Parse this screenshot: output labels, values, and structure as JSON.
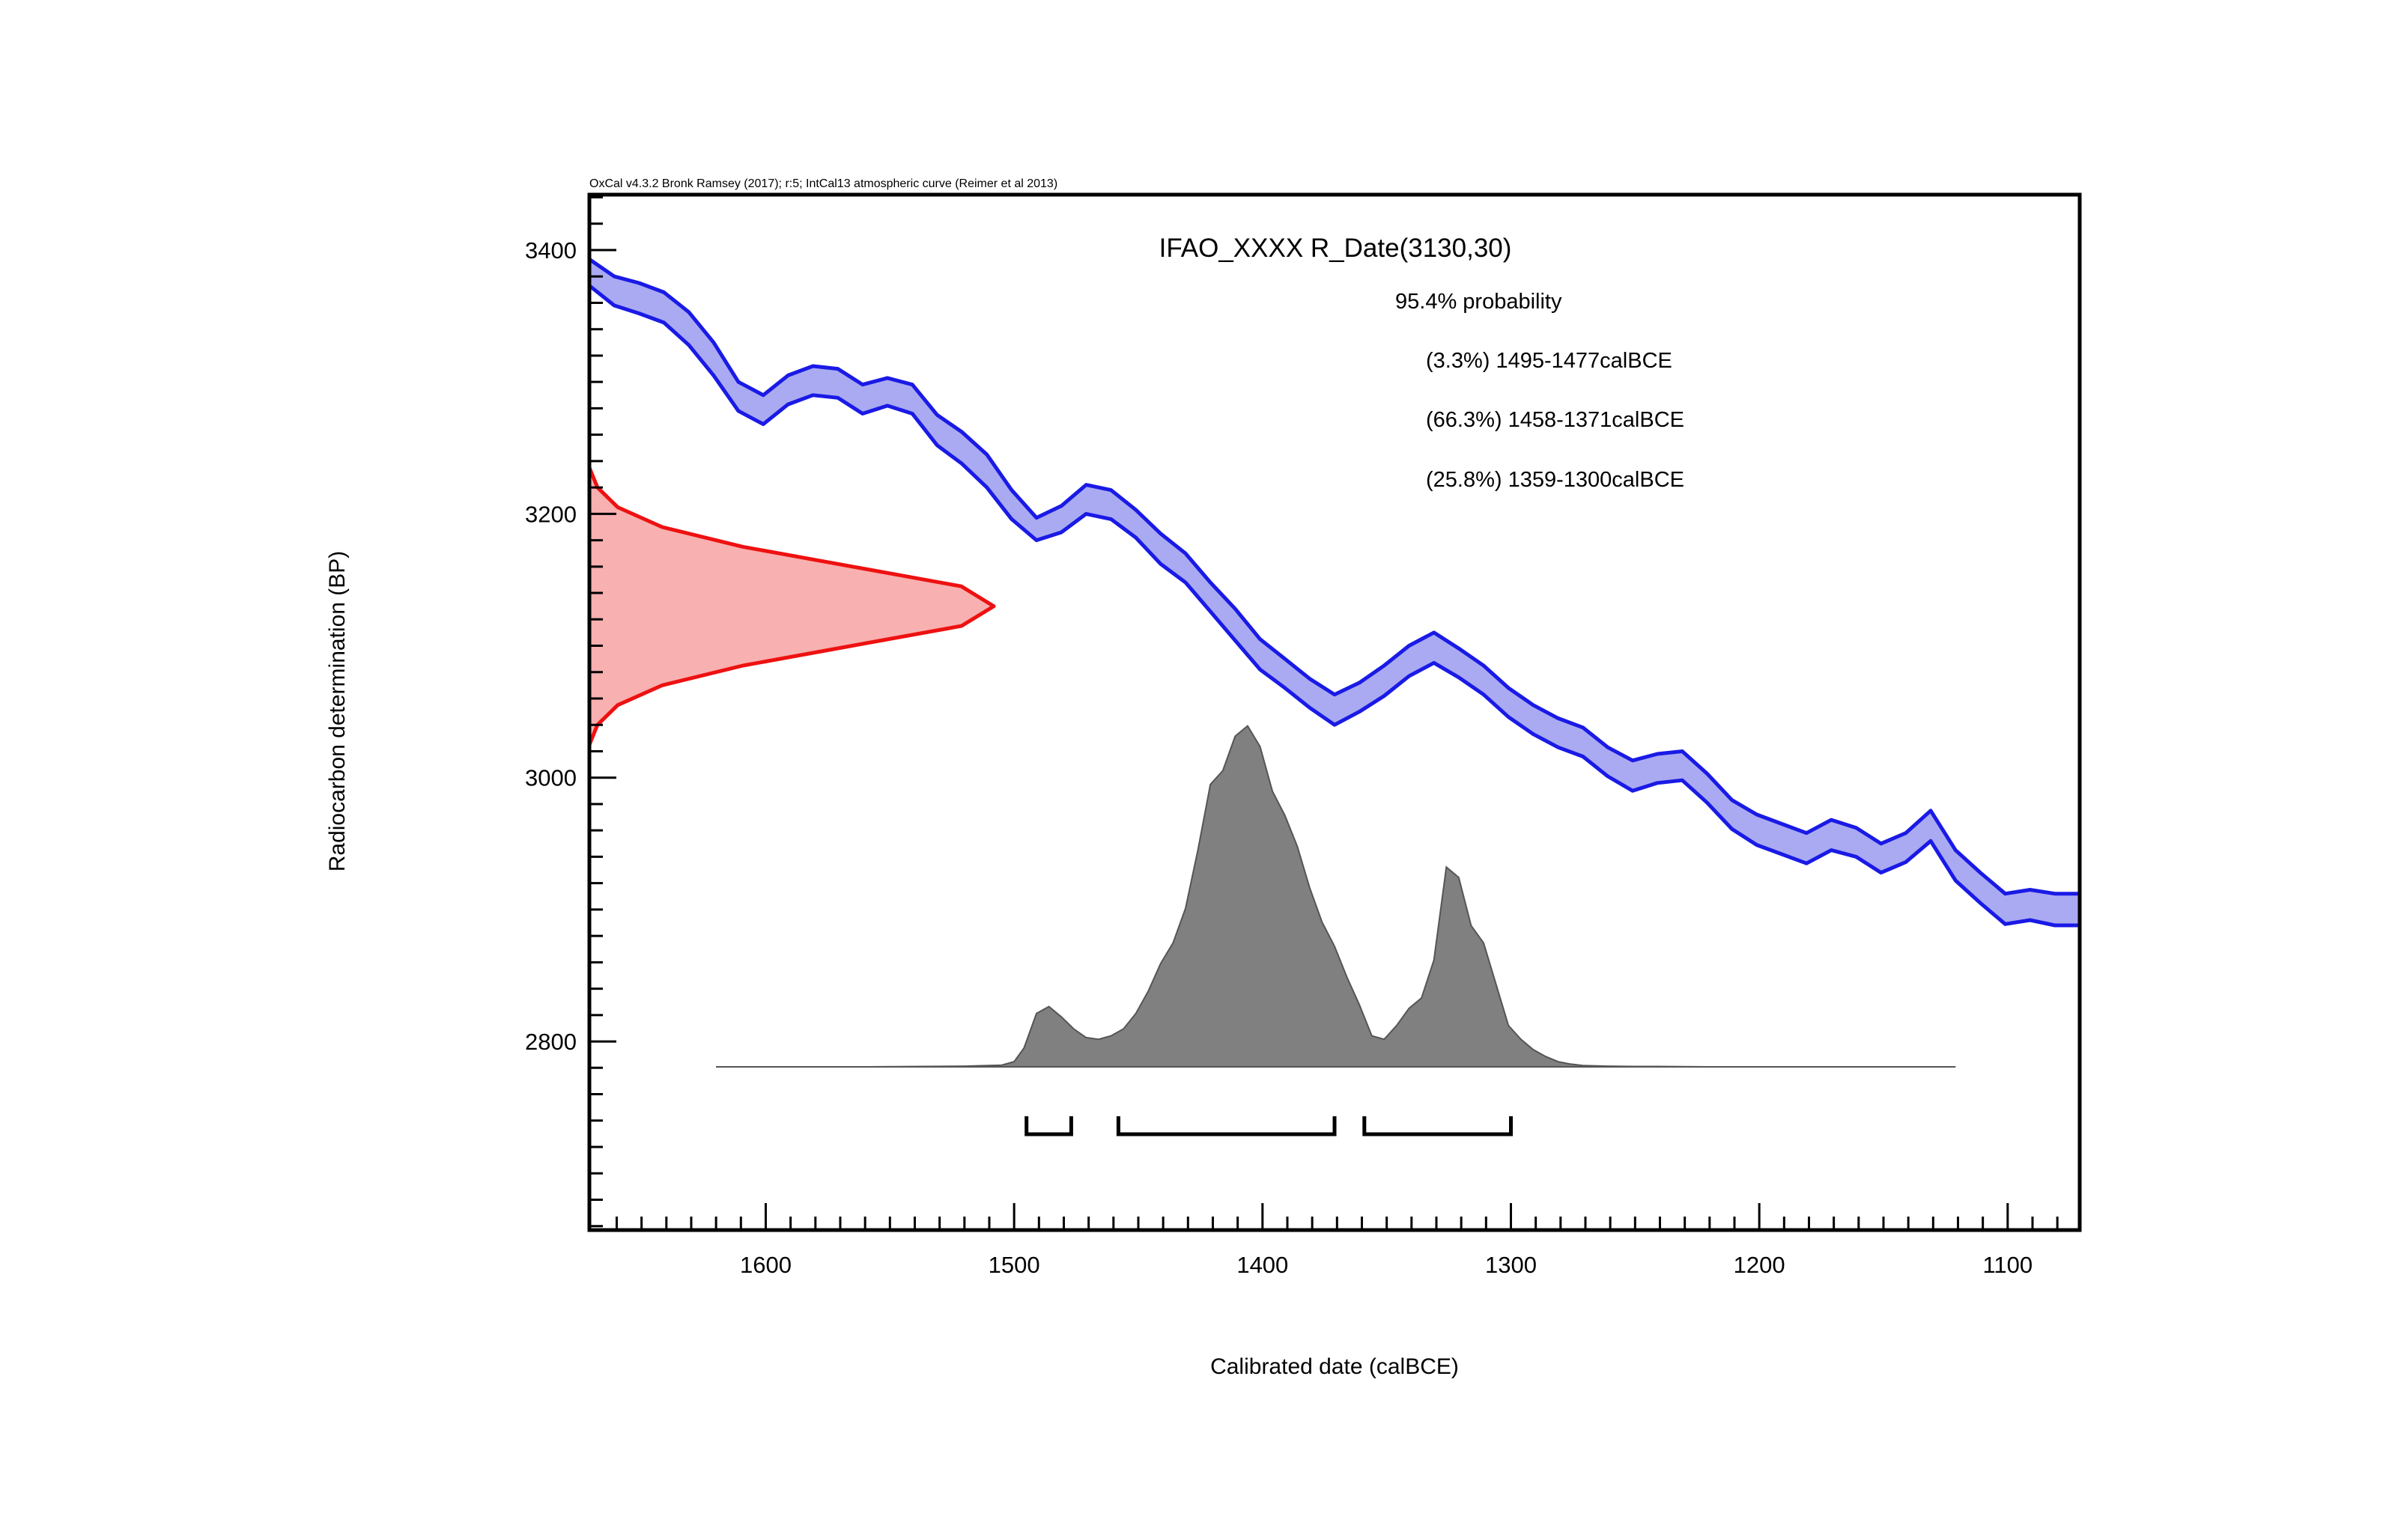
{
  "chart_data": {
    "type": "area",
    "header": "OxCal v4.3.2 Bronk Ramsey (2017); r:5; IntCal13 atmospheric curve (Reimer et al 2013)",
    "title": "IFAO_XXXX R_Date(3130,30)",
    "probability_heading": "95.4% probability",
    "ranges": [
      {
        "label": "(3.3%) 1495-1477calBCE",
        "from": 1495,
        "to": 1477,
        "percent": 3.3
      },
      {
        "label": "(66.3%) 1458-1371calBCE",
        "from": 1458,
        "to": 1371,
        "percent": 66.3
      },
      {
        "label": "(25.8%) 1359-1300calBCE",
        "from": 1359,
        "to": 1300,
        "percent": 25.8
      }
    ],
    "xlabel": "Calibrated date (calBCE)",
    "ylabel": "Radiocarbon determination (BP)",
    "xlim": [
      1671,
      1071
    ],
    "ylim": [
      2657,
      3442
    ],
    "x_ticks": [
      "1600",
      "1500",
      "1400",
      "1300",
      "1200",
      "1100"
    ],
    "y_ticks": [
      "3400",
      "3200",
      "3000",
      "2800"
    ],
    "radiocarbon_date": {
      "mean": 3130,
      "sigma": 30
    },
    "calibration_curve": {
      "name": "IntCal13 atmospheric curve",
      "x": [
        1671,
        1661,
        1651,
        1641,
        1631,
        1621,
        1611,
        1601,
        1591,
        1581,
        1571,
        1561,
        1551,
        1541,
        1531,
        1521,
        1511,
        1501,
        1491,
        1481,
        1471,
        1461,
        1451,
        1441,
        1431,
        1421,
        1411,
        1401,
        1391,
        1381,
        1371,
        1361,
        1351,
        1341,
        1331,
        1321,
        1311,
        1301,
        1291,
        1281,
        1271,
        1261,
        1251,
        1241,
        1231,
        1221,
        1211,
        1201,
        1191,
        1181,
        1171,
        1161,
        1151,
        1141,
        1131,
        1121,
        1111,
        1101,
        1091,
        1081,
        1071
      ],
      "upper": [
        3393,
        3380,
        3375,
        3368,
        3353,
        3330,
        3300,
        3290,
        3305,
        3312,
        3310,
        3298,
        3303,
        3298,
        3275,
        3262,
        3245,
        3218,
        3197,
        3206,
        3222,
        3218,
        3203,
        3185,
        3170,
        3148,
        3128,
        3105,
        3090,
        3075,
        3063,
        3072,
        3085,
        3100,
        3110,
        3098,
        3085,
        3068,
        3055,
        3045,
        3038,
        3023,
        3013,
        3018,
        3020,
        3003,
        2983,
        2972,
        2965,
        2958,
        2968,
        2962,
        2950,
        2958,
        2975,
        2945,
        2928,
        2912,
        2915,
        2912,
        2912
      ],
      "lower": [
        3373,
        3358,
        3352,
        3345,
        3328,
        3305,
        3278,
        3268,
        3283,
        3290,
        3288,
        3276,
        3282,
        3276,
        3252,
        3238,
        3220,
        3196,
        3180,
        3186,
        3200,
        3196,
        3182,
        3162,
        3148,
        3126,
        3104,
        3082,
        3068,
        3053,
        3040,
        3050,
        3062,
        3077,
        3087,
        3076,
        3063,
        3046,
        3033,
        3023,
        3016,
        3001,
        2990,
        2996,
        2998,
        2981,
        2961,
        2949,
        2942,
        2935,
        2945,
        2940,
        2928,
        2936,
        2952,
        2922,
        2905,
        2889,
        2892,
        2888,
        2888
      ]
    },
    "measurement_distribution": {
      "bp": [
        3235,
        3220,
        3205,
        3190,
        3175,
        3160,
        3145,
        3130,
        3115,
        3100,
        3085,
        3070,
        3055,
        3040,
        3025
      ],
      "density": [
        0.0,
        0.02,
        0.07,
        0.18,
        0.38,
        0.65,
        0.92,
        1.0,
        0.92,
        0.65,
        0.38,
        0.18,
        0.07,
        0.02,
        0.0
      ]
    },
    "calibrated_distribution": {
      "x": [
        1620,
        1600,
        1560,
        1520,
        1505,
        1500,
        1496,
        1491,
        1486,
        1481,
        1476,
        1471,
        1466,
        1461,
        1456,
        1451,
        1446,
        1441,
        1436,
        1431,
        1426,
        1421,
        1416,
        1411,
        1406,
        1401,
        1396,
        1391,
        1386,
        1381,
        1376,
        1371,
        1366,
        1361,
        1356,
        1351,
        1346,
        1341,
        1336,
        1331,
        1326,
        1321,
        1316,
        1311,
        1306,
        1301,
        1296,
        1291,
        1286,
        1281,
        1276,
        1271,
        1261,
        1251,
        1241,
        1221,
        1181,
        1121
      ],
      "density": [
        0,
        0,
        0,
        0.002,
        0.005,
        0.015,
        0.055,
        0.155,
        0.175,
        0.145,
        0.11,
        0.085,
        0.08,
        0.09,
        0.11,
        0.155,
        0.22,
        0.3,
        0.36,
        0.46,
        0.63,
        0.82,
        0.86,
        0.96,
        0.99,
        0.93,
        0.8,
        0.73,
        0.64,
        0.52,
        0.42,
        0.35,
        0.26,
        0.18,
        0.09,
        0.08,
        0.12,
        0.17,
        0.2,
        0.31,
        0.58,
        0.55,
        0.41,
        0.36,
        0.24,
        0.12,
        0.08,
        0.05,
        0.03,
        0.015,
        0.008,
        0.004,
        0.002,
        0.001,
        0.001,
        0,
        0,
        0
      ]
    },
    "colors": {
      "curve_line": "#1a1ae6",
      "curve_fill": "#aaaaf2",
      "measurement_line": "#ee1111",
      "measurement_fill": "#f9b0b0",
      "posterior_fill": "#808080",
      "posterior_line": "#555555"
    }
  }
}
